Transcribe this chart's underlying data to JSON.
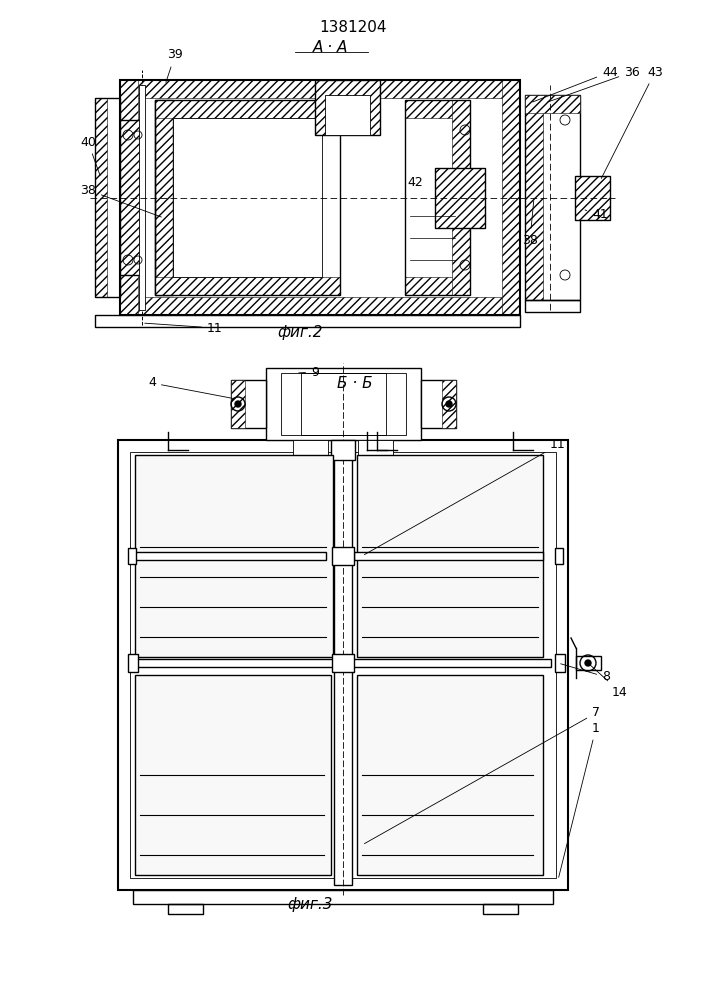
{
  "title": "1381204",
  "fig2_label": "фиг.2",
  "fig3_label": "фиг.3",
  "section_label_fig2": "A · A",
  "section_label_fig3": "Б · Б",
  "bg_color": "#ffffff",
  "line_color": "#000000"
}
